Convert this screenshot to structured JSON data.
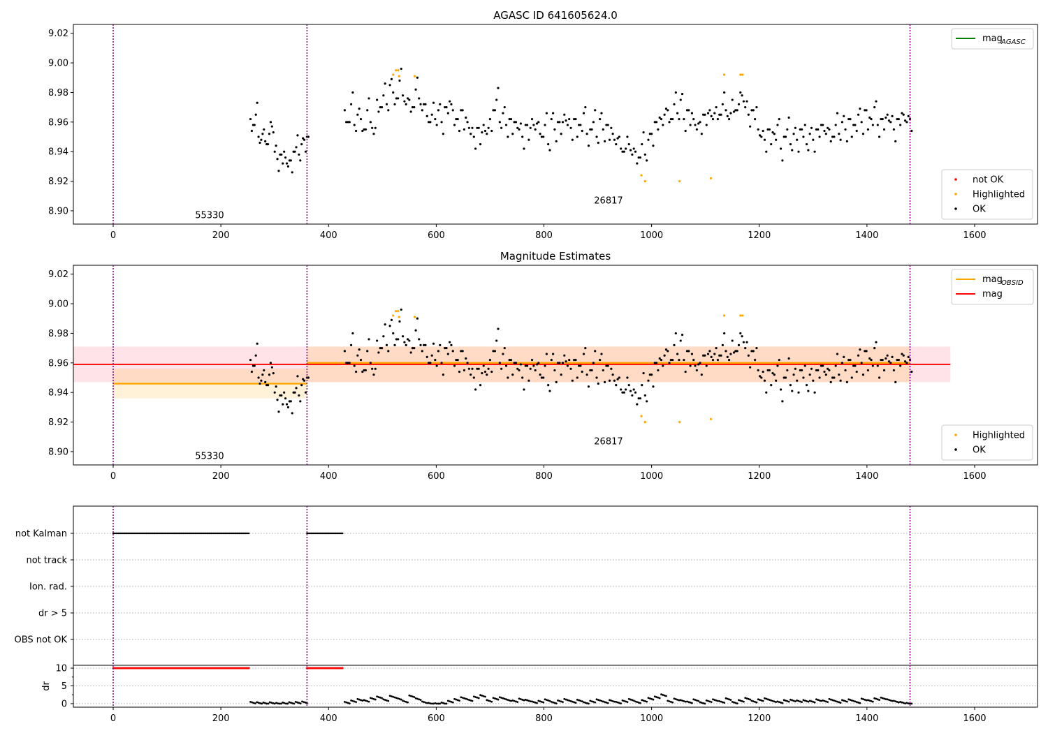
{
  "chart_data": [
    {
      "type": "scatter",
      "title": "AGASC ID 641605624.0",
      "xlim": [
        -74,
        1717
      ],
      "ylim": [
        8.891,
        9.026
      ],
      "xticks": [
        0,
        200,
        400,
        600,
        800,
        1000,
        1200,
        1400,
        1600
      ],
      "yticks": [
        "8.90",
        "8.92",
        "8.94",
        "8.96",
        "8.98",
        "9.00",
        "9.02"
      ],
      "vlines": [
        0,
        360,
        1480
      ],
      "annotations": [
        {
          "text": "55330",
          "x": 179,
          "y": 8.895
        },
        {
          "text": "26817",
          "x": 920,
          "y": 8.905
        }
      ],
      "legend_top": {
        "placement": "top-right",
        "entries": [
          {
            "label": "mag",
            "sub": "AGASC",
            "color": "#008000"
          }
        ]
      },
      "legend_bottom": {
        "placement": "bottom-right",
        "entries": [
          {
            "label": "not OK",
            "color": "#ff0000"
          },
          {
            "label": "Highlighted",
            "color": "#ffa500"
          },
          {
            "label": "OK",
            "color": "#000000"
          }
        ]
      }
    },
    {
      "type": "scatter",
      "title": "Magnitude Estimates",
      "xlim": [
        -74,
        1717
      ],
      "ylim": [
        8.891,
        9.026
      ],
      "xticks": [
        0,
        200,
        400,
        600,
        800,
        1000,
        1200,
        1400,
        1600
      ],
      "yticks": [
        "8.90",
        "8.92",
        "8.94",
        "8.96",
        "8.98",
        "9.00",
        "9.02"
      ],
      "vlines": [
        0,
        360,
        1480
      ],
      "annotations": [
        {
          "text": "55330",
          "x": 179,
          "y": 8.895
        },
        {
          "text": "26817",
          "x": 920,
          "y": 8.905
        }
      ],
      "mag_obsid": [
        {
          "x0": 0,
          "x1": 360,
          "y": 8.946,
          "lo": 8.936,
          "hi": 8.956
        },
        {
          "x0": 360,
          "x1": 1480,
          "y": 8.96,
          "lo": 8.947,
          "hi": 8.971
        }
      ],
      "mag": {
        "x0": -74,
        "x1": 1555,
        "y": 8.959,
        "lo": 8.947,
        "hi": 8.971
      },
      "legend_top": {
        "placement": "top-right",
        "entries": [
          {
            "label": "mag",
            "sub": "OBSID",
            "color": "#ffa500"
          },
          {
            "label": "mag",
            "sub": "",
            "color": "#ff0000"
          }
        ]
      },
      "legend_bottom": {
        "placement": "bottom-right",
        "entries": [
          {
            "label": "Highlighted",
            "color": "#ffa500"
          },
          {
            "label": "OK",
            "color": "#000000"
          }
        ]
      }
    },
    {
      "type": "scatter",
      "title": "",
      "flag_categories": [
        "not Kalman",
        "not track",
        "Ion. rad.",
        "dr > 5",
        "OBS not OK"
      ],
      "not_kalman_ranges": [
        [
          0,
          252
        ],
        [
          360,
          426
        ]
      ],
      "dr_ylabel": "dr",
      "dr_yticks": [
        "0",
        "5",
        "10"
      ],
      "dr_ylim": [
        -1,
        10.8
      ],
      "xticks": [
        0,
        200,
        400,
        600,
        800,
        1000,
        1200,
        1400,
        1600
      ],
      "dr_segments": [
        {
          "x0": 255,
          "step": 12,
          "values": [
            0.5,
            0.4,
            0.3,
            0.4,
            0.2,
            0.3,
            0.4,
            0.5,
            0.6
          ]
        },
        {
          "x0": 430,
          "step": 12,
          "values": [
            0.5,
            0.9,
            1.3,
            1.0,
            1.6,
            2.0,
            1.2,
            2.2,
            1.6,
            0.8,
            2.3,
            1.5,
            0.6,
            0.2,
            0.1,
            0.3,
            0.8,
            1.3,
            1.8,
            1.2,
            2.0,
            2.4,
            1.0,
            1.6,
            1.8,
            1.2,
            0.9,
            1.4,
            1.1,
            0.6,
            0.8,
            1.2,
            0.5,
            0.9,
            1.3,
            0.7,
            1.1,
            0.4,
            0.8,
            1.2,
            0.6,
            1.0,
            0.5,
            0.9,
            1.3,
            0.6,
            1.0,
            1.6,
            2.0,
            2.6,
            0.8,
            1.4,
            1.0,
            0.6,
            1.2,
            0.4,
            0.9,
            1.2,
            0.7,
            1.5,
            0.5,
            1.0,
            1.6,
            0.8,
            1.2,
            1.5,
            0.9,
            0.6,
            1.0,
            1.1,
            0.9,
            1.0,
            0.8,
            1.2,
            0.9,
            1.3,
            0.7,
            1.0,
            1.2,
            0.6,
            1.4,
            1.0,
            1.5,
            1.7,
            1.2,
            0.8,
            0.5,
            0.2
          ]
        }
      ]
    }
  ],
  "points": {
    "ok_segments": [
      {
        "x0": 255,
        "step": 5,
        "values": [
          8.962,
          8.958,
          8.965,
          8.95,
          8.948,
          8.955,
          8.945,
          8.952,
          8.957,
          8.94,
          8.935,
          8.938,
          8.932,
          8.936,
          8.93,
          8.934,
          8.94,
          8.943,
          8.938,
          8.945,
          8.948,
          8.95
        ]
      },
      {
        "x0": 430,
        "step": 6,
        "values": [
          8.968,
          8.96,
          8.972,
          8.958,
          8.965,
          8.962,
          8.955,
          8.968,
          8.96,
          8.952,
          8.975,
          8.97,
          8.978,
          8.972,
          8.985,
          8.98,
          8.976,
          8.988,
          8.978,
          8.972,
          8.975,
          8.97,
          8.982,
          8.976,
          8.968,
          8.972,
          8.96,
          8.965,
          8.962,
          8.968,
          8.96,
          8.97,
          8.966,
          8.972,
          8.958,
          8.962,
          8.968,
          8.955,
          8.96,
          8.952,
          8.95,
          8.956,
          8.945,
          8.958,
          8.952,
          8.962,
          8.968,
          8.975,
          8.96,
          8.966,
          8.958,
          8.962,
          8.952,
          8.96,
          8.955,
          8.95,
          8.958,
          8.948,
          8.962,
          8.955,
          8.96,
          8.95,
          8.958,
          8.945,
          8.962,
          8.955,
          8.96,
          8.952,
          8.965,
          8.958,
          8.956,
          8.962,
          8.95,
          8.958,
          8.966,
          8.952,
          8.955,
          8.96,
          8.95,
          8.962,
          8.955,
          8.958,
          8.948,
          8.952,
          8.945,
          8.95,
          8.94,
          8.942,
          8.945,
          8.938,
          8.94,
          8.936,
          8.945,
          8.938,
          8.948,
          8.952,
          8.96,
          8.955,
          8.962,
          8.965,
          8.968,
          8.962,
          8.972,
          8.966,
          8.975,
          8.962,
          8.968,
          8.958,
          8.962,
          8.955,
          8.96,
          8.965,
          8.958,
          8.968,
          8.962,
          8.97,
          8.965,
          8.972,
          8.968,
          8.962,
          8.975,
          8.968,
          8.972,
          8.978,
          8.97,
          8.965,
          8.968,
          8.962,
          8.955,
          8.95,
          8.948,
          8.955,
          8.945,
          8.952,
          8.958,
          8.942,
          8.95,
          8.955,
          8.945,
          8.952,
          8.948,
          8.955,
          8.95,
          8.945,
          8.952,
          8.948,
          8.955,
          8.95,
          8.958,
          8.952,
          8.955,
          8.95,
          8.958,
          8.952,
          8.96,
          8.955,
          8.962,
          8.95,
          8.958,
          8.965,
          8.96,
          8.968,
          8.955,
          8.962,
          8.97,
          8.958,
          8.962,
          8.955,
          8.965,
          8.96,
          8.955,
          8.962,
          8.958,
          8.965,
          8.96,
          8.962
        ]
      }
    ],
    "highlighted": [
      [
        520,
        8.992
      ],
      [
        525,
        8.995
      ],
      [
        529,
        8.995
      ],
      [
        531,
        8.991
      ],
      [
        560,
        8.991
      ],
      [
        981,
        8.924
      ],
      [
        988,
        8.92
      ],
      [
        1052,
        8.92
      ],
      [
        1110,
        8.922
      ],
      [
        1135,
        8.992
      ],
      [
        1165,
        8.992
      ],
      [
        1169,
        8.992
      ]
    ]
  },
  "colors": {
    "ok": "#000000",
    "highlighted": "#ffa500",
    "not_ok": "#ff0000",
    "vline": "#800080",
    "mag": "#ff0000",
    "mag_band": "#ffc0cb",
    "obsid": "#ffa500",
    "agasc": "#008000"
  }
}
